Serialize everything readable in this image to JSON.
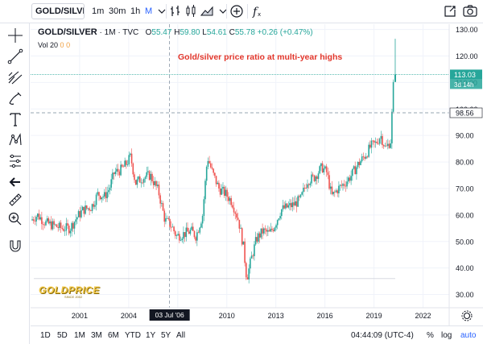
{
  "toolbar": {
    "symbol": "GOLD/SILVE",
    "timeframes": [
      "1m",
      "30m",
      "1h",
      "M"
    ],
    "active_timeframe": "M"
  },
  "legend": {
    "symbol": "GOLD/SILVER",
    "interval": "1M",
    "source": "TVC",
    "o_label": "O",
    "o_value": "55.47",
    "h_label": "H",
    "h_value": "59.80",
    "l_label": "L",
    "l_value": "54.61",
    "c_label": "C",
    "c_value": "55.78",
    "change": "+0.26 (+0.47%)",
    "vol_label": "Vol 20",
    "vol_value_1": "0",
    "vol_value_2": "0"
  },
  "headline": "Gold/silver price ratio at multi-year highs",
  "watermark": {
    "brand": "GOLDPRICE",
    "since": "SINCE 2002"
  },
  "price_labels": {
    "current": "113.03",
    "countdown": "3d 14h",
    "crosshair": "98.56"
  },
  "crosshair_date": "03 Jul '06",
  "bottom": {
    "ranges": [
      "1D",
      "5D",
      "1M",
      "3M",
      "6M",
      "YTD",
      "1Y",
      "5Y",
      "All"
    ],
    "clock": "04:44:09 (UTC-4)",
    "percent": "%",
    "log": "log",
    "auto": "auto"
  },
  "colors": {
    "up": "#26a69a",
    "down": "#ef5350",
    "headline": "#e2362b",
    "accent": "#2962ff",
    "last_price_bg": "#26a69a",
    "crosshair_bg": "#131722"
  },
  "chart_data": {
    "type": "candlestick",
    "interval": "1M",
    "x_ticks": [
      "2001",
      "2004",
      "2007",
      "2010",
      "2013",
      "2016",
      "2019",
      "2022"
    ],
    "y_ticks": [
      30,
      40,
      50,
      60,
      70,
      80,
      90,
      100,
      110,
      120,
      130
    ],
    "y_range": [
      25,
      132
    ],
    "x_range": [
      1998.0,
      2023.6
    ],
    "last_close": 113.03,
    "last_high": 126.5,
    "crosshair_value": 98.56,
    "crosshair_x": 2006.5,
    "support_line": 36.0,
    "series": [
      {
        "name": "ratio",
        "points": [
          [
            1998.1,
            58
          ],
          [
            1998.5,
            60
          ],
          [
            1999.0,
            57
          ],
          [
            1999.5,
            56
          ],
          [
            2000.0,
            55
          ],
          [
            2000.5,
            55
          ],
          [
            2000.9,
            59
          ],
          [
            2001.3,
            62
          ],
          [
            2001.8,
            63
          ],
          [
            2002.2,
            68
          ],
          [
            2002.6,
            67
          ],
          [
            2002.9,
            70
          ],
          [
            2003.2,
            76
          ],
          [
            2003.6,
            77
          ],
          [
            2003.9,
            79
          ],
          [
            2004.2,
            82
          ],
          [
            2004.5,
            72
          ],
          [
            2004.9,
            74
          ],
          [
            2005.4,
            75
          ],
          [
            2005.9,
            69
          ],
          [
            2006.3,
            58
          ],
          [
            2006.7,
            56
          ],
          [
            2007.0,
            52
          ],
          [
            2007.5,
            53
          ],
          [
            2007.9,
            54
          ],
          [
            2008.2,
            52
          ],
          [
            2008.6,
            60
          ],
          [
            2008.9,
            82
          ],
          [
            2009.2,
            76
          ],
          [
            2009.6,
            70
          ],
          [
            2010.0,
            68
          ],
          [
            2010.4,
            65
          ],
          [
            2010.8,
            58
          ],
          [
            2011.1,
            48
          ],
          [
            2011.3,
            36
          ],
          [
            2011.6,
            44
          ],
          [
            2011.9,
            51
          ],
          [
            2012.3,
            54
          ],
          [
            2012.7,
            53
          ],
          [
            2013.0,
            56
          ],
          [
            2013.4,
            62
          ],
          [
            2013.8,
            63
          ],
          [
            2014.2,
            64
          ],
          [
            2014.6,
            66
          ],
          [
            2015.0,
            73
          ],
          [
            2015.4,
            74
          ],
          [
            2015.9,
            78
          ],
          [
            2016.2,
            76
          ],
          [
            2016.5,
            67
          ],
          [
            2016.9,
            70
          ],
          [
            2017.3,
            72
          ],
          [
            2017.7,
            75
          ],
          [
            2018.1,
            79
          ],
          [
            2018.6,
            83
          ],
          [
            2018.9,
            86
          ],
          [
            2019.2,
            87
          ],
          [
            2019.5,
            90
          ],
          [
            2019.8,
            85
          ],
          [
            2020.1,
            88
          ],
          [
            2020.2,
            100
          ],
          [
            2020.3,
            113
          ]
        ]
      }
    ]
  }
}
